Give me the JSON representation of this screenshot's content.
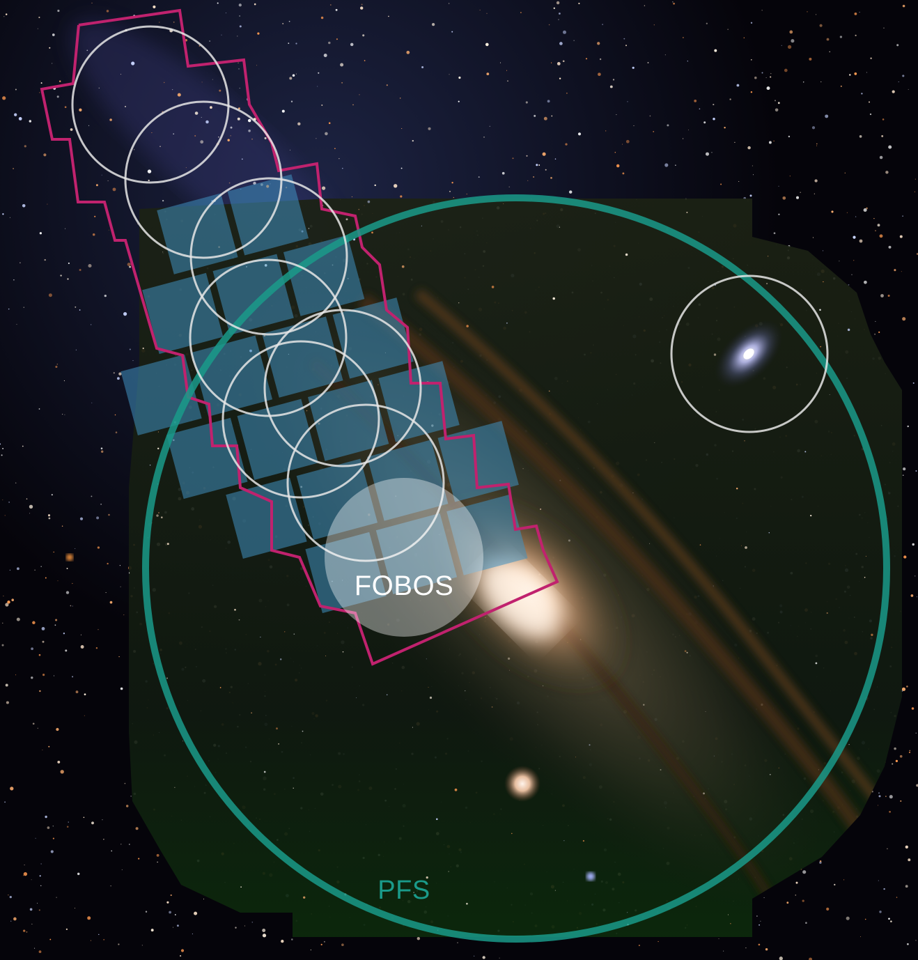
{
  "labels": {
    "fobos": "FOBOS",
    "pfs": "PFS"
  },
  "colors": {
    "sky_background": "#05040a",
    "pfs_circle": "#1a9a8a",
    "pfs_label": "#1a9a8a",
    "fobos_label": "#ffffff",
    "footprint_outline": "#c0226e",
    "tile_fill": "#3f90c0",
    "white_circle": "#e6e6e6",
    "galaxy_core": "#fff0e0",
    "dust_lanes": "#5a3a1c",
    "companion_galaxy": "#b0b4ff",
    "mosaic_tint": "#0e1a10"
  }
}
